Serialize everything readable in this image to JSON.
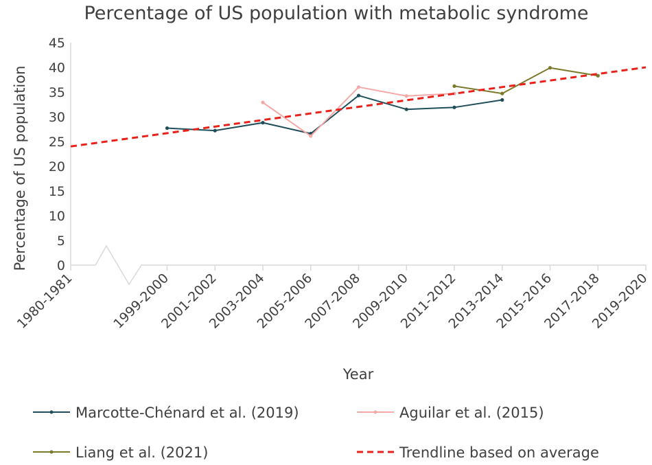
{
  "chart_data": {
    "type": "line",
    "title": "Percentage of US population with metabolic syndrome",
    "xlabel": "Year",
    "ylabel": "Percentage of US population",
    "ylim": [
      0,
      45
    ],
    "yticks": [
      0,
      5,
      10,
      15,
      20,
      25,
      30,
      35,
      40,
      45
    ],
    "categories": [
      "1980-1981",
      "1999-2000",
      "2001-2002",
      "2003-2004",
      "2005-2006",
      "2007-2008",
      "2009-2010",
      "2011-2012",
      "2013-2014",
      "2015-2016",
      "2017-2018",
      "2019-2020"
    ],
    "axis_break_after": "1980-1981",
    "series": [
      {
        "name": "Marcotte-Chénard et al. (2019)",
        "color": "#1f4e5a",
        "points": [
          {
            "x": "1999-2000",
            "y": 27.7
          },
          {
            "x": "2001-2002",
            "y": 27.2
          },
          {
            "x": "2003-2004",
            "y": 28.8
          },
          {
            "x": "2005-2006",
            "y": 26.6
          },
          {
            "x": "2007-2008",
            "y": 34.3
          },
          {
            "x": "2009-2010",
            "y": 31.5
          },
          {
            "x": "2011-2012",
            "y": 31.9
          },
          {
            "x": "2013-2014",
            "y": 33.4
          }
        ]
      },
      {
        "name": "Aguilar et al. (2015)",
        "color": "#f4a9a8",
        "points": [
          {
            "x": "2003-2004",
            "y": 32.9
          },
          {
            "x": "2005-2006",
            "y": 26.1
          },
          {
            "x": "2007-2008",
            "y": 36.0
          },
          {
            "x": "2009-2010",
            "y": 34.2
          },
          {
            "x": "2011-2012",
            "y": 34.7
          }
        ]
      },
      {
        "name": "Liang et al. (2021)",
        "color": "#7a7a2a",
        "points": [
          {
            "x": "2011-2012",
            "y": 36.2
          },
          {
            "x": "2013-2014",
            "y": 34.7
          },
          {
            "x": "2015-2016",
            "y": 39.9
          },
          {
            "x": "2017-2018",
            "y": 38.3
          }
        ]
      }
    ],
    "trendline": {
      "name": "Trendline based on average",
      "color": "#e8221b",
      "style": "dashed",
      "start": {
        "x": "1980-1981",
        "y": 24.0
      },
      "end": {
        "x": "2019-2020",
        "y": 40.0
      }
    },
    "legend": {
      "position": "bottom",
      "entries": [
        "Marcotte-Chénard et al. (2019)",
        "Aguilar et al. (2015)",
        "Liang et al. (2021)",
        "Trendline based on average"
      ]
    }
  }
}
